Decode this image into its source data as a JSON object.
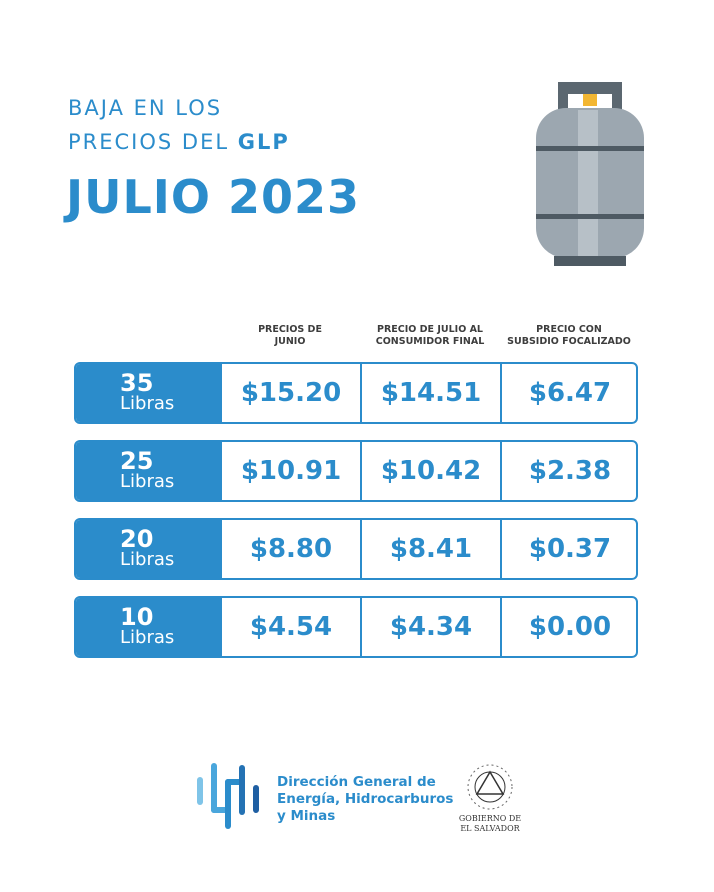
{
  "header": {
    "line1": "BAJA EN LOS",
    "line2": {
      "text": "PRECIOS DEL",
      "bold": "GLP"
    },
    "title": "JULIO 2023"
  },
  "table": {
    "columns": [
      [
        "PRECIOS DE",
        "JUNIO"
      ],
      [
        "PRECIO DE JULIO AL",
        "CONSUMIDOR FINAL"
      ],
      [
        "PRECIO CON",
        "SUBSIDIO FOCALIZADO"
      ]
    ],
    "rows": [
      {
        "weight": "35",
        "unit": "Libras",
        "prices": [
          "$15.20",
          "$14.51",
          "$6.47"
        ]
      },
      {
        "weight": "25",
        "unit": "Libras",
        "prices": [
          "$10.91",
          "$10.42",
          "$2.38"
        ]
      },
      {
        "weight": "20",
        "unit": "Libras",
        "prices": [
          "$8.80",
          "$8.41",
          "$0.37"
        ]
      },
      {
        "weight": "10",
        "unit": "Libras",
        "prices": [
          "$4.54",
          "$4.34",
          "$0.00"
        ]
      }
    ]
  },
  "footer": {
    "agency": [
      "Dirección General de",
      "Energía, Hidrocarburos",
      "y Minas"
    ],
    "government": [
      "GOBIERNO DE",
      "EL SALVADOR"
    ]
  }
}
